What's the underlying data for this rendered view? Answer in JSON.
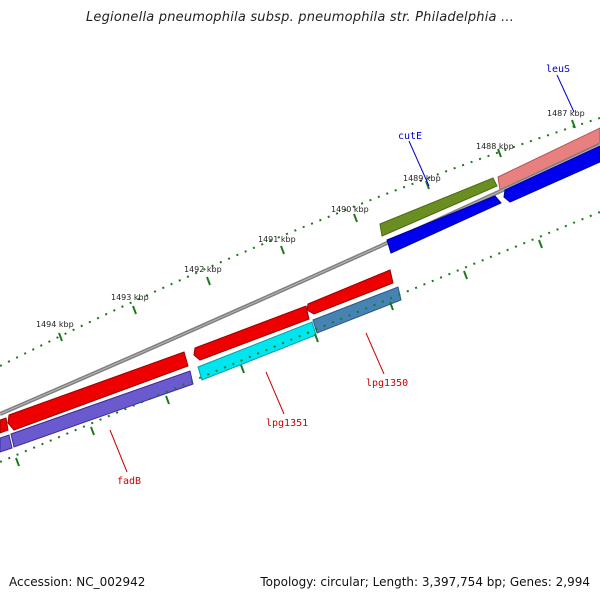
{
  "title": "Legionella pneumophila subsp. pneumophila str. Philadelphia ...",
  "footer": {
    "accession": "Accession: NC_002942",
    "topology": "Topology: circular; Length: 3,397,754 bp; Genes: 2,994"
  },
  "ruler_labels": [
    "1487 kbp",
    "1488 kbp",
    "1489 kbp",
    "1490 kbp",
    "1491 kbp",
    "1492 kbp",
    "1493 kbp",
    "1494 kbp"
  ],
  "gene_labels": [
    {
      "name": "leuS",
      "color": "#0000cc"
    },
    {
      "name": "cutE",
      "color": "#0000cc"
    },
    {
      "name": "lpg1350",
      "color": "#cc0000"
    },
    {
      "name": "lpg1351",
      "color": "#cc0000"
    },
    {
      "name": "fadB",
      "color": "#cc0000"
    }
  ],
  "colors": {
    "forward_red": "#ee0000",
    "reverse_blue": "#0000ee",
    "olive": "#6b8e23",
    "pink": "#e88080",
    "cyan": "#00e5ee",
    "steelblue": "#4682b4",
    "slateblue": "#6a5acd",
    "backbone": "#808080",
    "tick": "#1a7a1a"
  }
}
